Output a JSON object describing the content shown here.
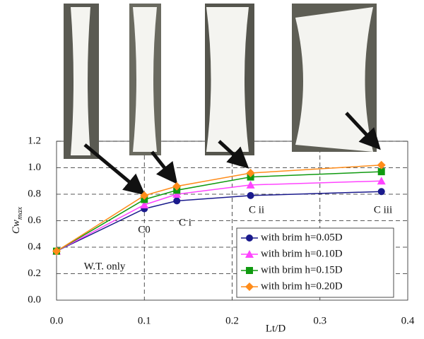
{
  "chart_data": {
    "type": "line",
    "x_label": "Lt/D",
    "y_label": "Cw",
    "y_label_sub": "max",
    "x": [
      0,
      0.1,
      0.137,
      0.221,
      0.37
    ],
    "series": [
      {
        "name": "with brim h=0.05D",
        "color": "#1a1a8c",
        "marker": "circle",
        "values": [
          0.37,
          0.69,
          0.75,
          0.79,
          0.82
        ]
      },
      {
        "name": "with brim h=0.10D",
        "color": "#ff44ff",
        "marker": "triangle",
        "values": [
          0.37,
          0.72,
          0.8,
          0.87,
          0.9
        ]
      },
      {
        "name": "with brim h=0.15D",
        "color": "#109a10",
        "marker": "square",
        "values": [
          0.37,
          0.76,
          0.83,
          0.93,
          0.97
        ]
      },
      {
        "name": "with brim h=0.20D",
        "color": "#ff8c1a",
        "marker": "diamond",
        "values": [
          0.37,
          0.79,
          0.86,
          0.96,
          1.02
        ]
      }
    ],
    "xlim": [
      0,
      0.4
    ],
    "ylim": [
      0,
      1.2
    ],
    "xticks": [
      {
        "value": 0,
        "label": "0.0"
      },
      0.1,
      0.2,
      0.3,
      0.4
    ],
    "yticks": [
      {
        "value": 0,
        "label": "0.0"
      },
      0.2,
      0.4,
      0.6,
      0.8,
      {
        "value": 1,
        "label": "1.0"
      },
      1.2
    ],
    "grid": true,
    "legend": "lower right",
    "annotations": [
      "C0",
      "C i",
      "C ii",
      "C iii",
      "W.T. only"
    ]
  }
}
